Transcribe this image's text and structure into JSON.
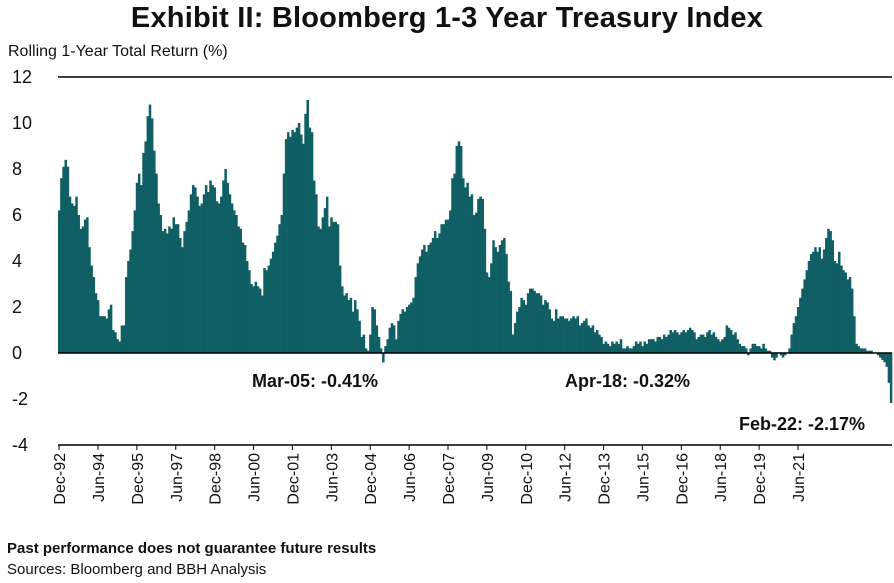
{
  "title": "Exhibit II: Bloomberg 1-3 Year Treasury Index",
  "footer": {
    "note": "Past performance does not guarantee future results",
    "source": "Sources: Bloomberg and BBH Analysis"
  },
  "colors": {
    "bar": "#0f5f64",
    "axis": "#000000"
  },
  "chart_data": {
    "type": "bar",
    "title": "Exhibit II: Bloomberg 1-3 Year Treasury Index",
    "ylabel": "Rolling 1-Year Total Return (%)",
    "xlabel": "",
    "ylim": [
      -4,
      12
    ],
    "yticks": [
      12,
      10,
      8,
      6,
      4,
      2,
      0,
      -2,
      -4
    ],
    "grid": false,
    "start_month": "Dec-92",
    "frequency": "monthly",
    "xtick_labels": [
      "Dec-92",
      "Jun-94",
      "Dec-95",
      "Jun-97",
      "Dec-98",
      "Jun-00",
      "Dec-01",
      "Jun-03",
      "Dec-04",
      "Jun-06",
      "Dec-07",
      "Jun-09",
      "Dec-10",
      "Jun-12",
      "Dec-13",
      "Jun-15",
      "Dec-16",
      "Jun-18",
      "Dec-19",
      "Jun-21"
    ],
    "values": [
      6.2,
      7.6,
      8.1,
      8.4,
      8.1,
      6.8,
      6.5,
      6.4,
      6.8,
      6.0,
      5.4,
      5.5,
      5.8,
      5.9,
      4.6,
      3.8,
      3.3,
      2.6,
      2.3,
      1.6,
      1.6,
      1.6,
      1.5,
      1.9,
      2.1,
      1.0,
      0.9,
      0.6,
      0.5,
      1.2,
      1.2,
      3.3,
      4.0,
      4.5,
      5.3,
      6.2,
      7.4,
      7.8,
      7.3,
      8.7,
      9.2,
      10.3,
      10.8,
      10.2,
      8.8,
      7.8,
      6.5,
      6.0,
      5.3,
      5.4,
      5.2,
      5.5,
      5.4,
      5.9,
      5.6,
      5.6,
      5.0,
      4.6,
      5.3,
      5.7,
      6.2,
      6.9,
      7.3,
      7.2,
      6.8,
      6.4,
      6.5,
      6.9,
      7.3,
      7.0,
      7.5,
      7.3,
      7.2,
      6.6,
      6.5,
      6.8,
      7.5,
      8.0,
      7.4,
      6.9,
      6.5,
      6.2,
      6.0,
      5.5,
      5.4,
      4.8,
      4.7,
      4.0,
      3.6,
      3.0,
      2.9,
      3.1,
      2.9,
      2.8,
      2.5,
      3.7,
      3.6,
      3.8,
      4.1,
      4.4,
      4.8,
      5.1,
      5.6,
      6.0,
      7.8,
      9.3,
      9.6,
      9.4,
      9.7,
      9.6,
      9.8,
      10.0,
      9.5,
      9.1,
      10.4,
      11.0,
      9.8,
      9.6,
      7.5,
      6.9,
      5.5,
      5.4,
      5.9,
      6.3,
      6.8,
      5.5,
      5.9,
      5.7,
      5.7,
      5.6,
      3.8,
      2.9,
      2.5,
      2.6,
      2.3,
      2.4,
      1.8,
      2.3,
      1.9,
      1.4,
      0.7,
      0.8,
      0.2,
      0.1,
      0.8,
      2.0,
      1.9,
      1.2,
      0.7,
      0.2,
      -0.41,
      0.3,
      0.6,
      1.1,
      1.3,
      1.2,
      0.6,
      1.4,
      1.7,
      1.9,
      1.8,
      2.0,
      2.1,
      2.2,
      2.4,
      3.3,
      3.9,
      4.2,
      4.5,
      4.7,
      4.4,
      4.7,
      4.8,
      5.0,
      5.3,
      5.0,
      5.2,
      5.6,
      5.6,
      5.8,
      5.8,
      6.2,
      7.6,
      7.8,
      9.0,
      9.2,
      9.0,
      7.6,
      7.2,
      7.4,
      6.8,
      6.9,
      6.0,
      6.1,
      6.7,
      6.8,
      6.7,
      5.4,
      3.5,
      3.3,
      3.9,
      4.9,
      4.6,
      4.4,
      4.7,
      4.9,
      5.0,
      4.3,
      3.1,
      2.7,
      0.8,
      1.3,
      1.8,
      2.0,
      2.4,
      2.3,
      2.1,
      2.6,
      2.8,
      2.8,
      2.7,
      2.6,
      2.6,
      2.5,
      2.1,
      2.3,
      2.2,
      1.9,
      1.5,
      1.4,
      1.9,
      1.5,
      1.6,
      1.6,
      1.5,
      1.5,
      1.4,
      1.5,
      1.6,
      1.5,
      1.6,
      1.2,
      1.3,
      1.4,
      1.5,
      1.2,
      1.1,
      1.2,
      0.9,
      1.0,
      0.8,
      0.7,
      0.4,
      0.5,
      0.4,
      0.3,
      0.5,
      0.4,
      0.5,
      0.4,
      0.6,
      0.2,
      0.2,
      0.3,
      0.2,
      0.2,
      0.3,
      0.5,
      0.4,
      0.5,
      0.3,
      0.5,
      0.4,
      0.6,
      0.6,
      0.6,
      0.5,
      0.7,
      0.7,
      0.6,
      0.8,
      0.7,
      0.8,
      1.0,
      0.9,
      1.0,
      0.9,
      0.8,
      0.9,
      1.0,
      0.9,
      1.0,
      1.1,
      1.0,
      0.9,
      0.6,
      0.7,
      0.8,
      0.8,
      0.7,
      0.9,
      1.0,
      0.8,
      0.9,
      0.7,
      0.6,
      0.5,
      0.6,
      0.7,
      1.2,
      1.1,
      1.0,
      0.8,
      0.9,
      0.6,
      0.4,
      0.3,
      0.3,
      0.2,
      -0.1,
      0.2,
      0.4,
      0.4,
      0.3,
      0.3,
      0.2,
      0.4,
      0.2,
      0.1,
      0.1,
      -0.2,
      -0.32,
      -0.2,
      0.0,
      -0.1,
      -0.2,
      -0.1,
      0.0,
      0.2,
      0.8,
      1.3,
      1.6,
      2.0,
      2.4,
      2.8,
      3.2,
      3.6,
      4.0,
      4.3,
      4.4,
      4.6,
      4.4,
      4.6,
      4.1,
      4.5,
      5.0,
      5.4,
      5.3,
      4.9,
      4.0,
      3.9,
      4.4,
      3.8,
      3.6,
      3.5,
      3.2,
      3.3,
      2.8,
      1.6,
      0.4,
      0.3,
      0.2,
      0.2,
      0.2,
      0.1,
      0.1,
      0.1,
      0.0,
      0.0,
      -0.1,
      -0.2,
      -0.3,
      -0.4,
      -0.6,
      -1.3,
      -2.17
    ],
    "annotations": [
      {
        "label": "Mar-05: -0.41%",
        "month": "Mar-05",
        "value": -0.41
      },
      {
        "label": "Apr-18: -0.32%",
        "month": "Apr-18",
        "value": -0.32
      },
      {
        "label": "Feb-22: -2.17%",
        "month": "Feb-22",
        "value": -2.17
      }
    ]
  }
}
